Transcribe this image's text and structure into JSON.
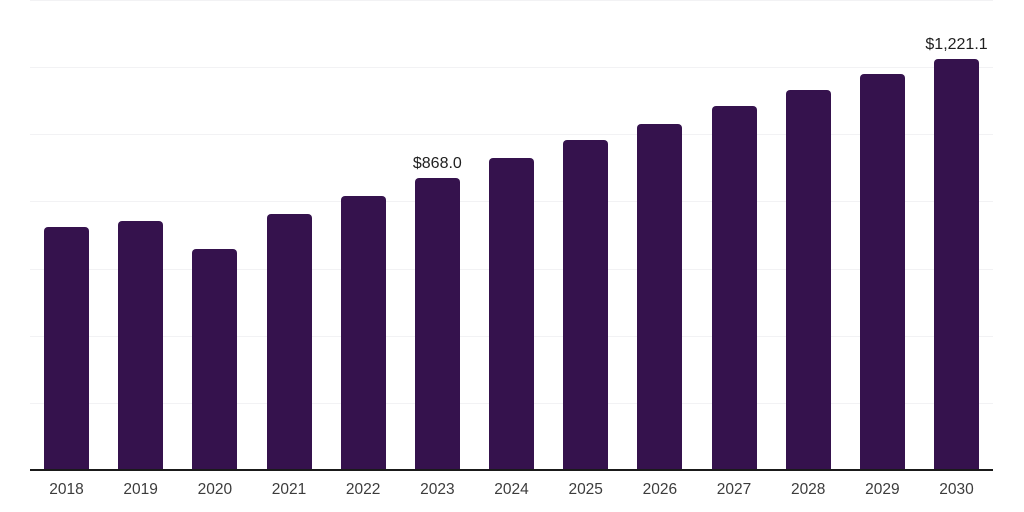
{
  "chart_data": {
    "type": "bar",
    "title": "",
    "xlabel": "",
    "ylabel": "",
    "categories": [
      "2018",
      "2019",
      "2020",
      "2021",
      "2022",
      "2023",
      "2024",
      "2025",
      "2026",
      "2027",
      "2028",
      "2029",
      "2030"
    ],
    "values": [
      721,
      739,
      656,
      760,
      814,
      868.0,
      926,
      979,
      1027,
      1080,
      1128,
      1176,
      1221.1
    ],
    "data_labels": [
      null,
      null,
      null,
      null,
      null,
      "$868.0",
      null,
      null,
      null,
      null,
      null,
      null,
      "$1,221.1"
    ],
    "ylim": [
      0,
      1400
    ],
    "grid_step": 200,
    "grid": true,
    "legend_position": "none",
    "y_axis_labels_visible": false,
    "colors": {
      "bar": "#35124d",
      "grid": "#f2f2f4",
      "axis": "#1a1a1a",
      "data_label": "#1f1f1f",
      "tick_label": "#3c3c3c",
      "background": "#ffffff"
    }
  }
}
